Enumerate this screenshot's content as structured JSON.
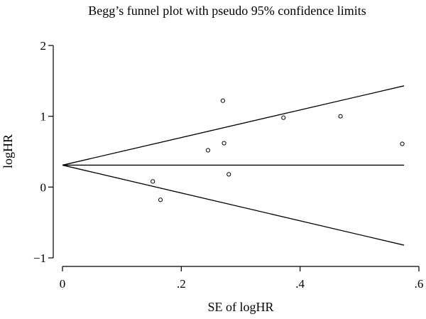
{
  "chart_data": {
    "type": "scatter",
    "title": "Begg’s funnel plot with pseudo 95% confidence limits",
    "xlabel": "SE of logHR",
    "ylabel": "logHR",
    "xlim": [
      0,
      0.6
    ],
    "ylim": [
      -1,
      2
    ],
    "x_ticks": [
      0,
      0.2,
      0.4,
      0.6
    ],
    "x_tick_labels": [
      "0",
      ".2",
      ".4",
      ".6"
    ],
    "y_ticks": [
      -1,
      0,
      1,
      2
    ],
    "y_tick_labels": [
      "−1",
      "0",
      "1",
      "2"
    ],
    "grid": false,
    "pooled_estimate": 0.31,
    "funnel_limits": {
      "se_max": 0.575,
      "upper_at_se_max": 1.43,
      "lower_at_se_max": -0.82
    },
    "points": [
      {
        "x": 0.152,
        "y": 0.08
      },
      {
        "x": 0.165,
        "y": -0.18
      },
      {
        "x": 0.245,
        "y": 0.52
      },
      {
        "x": 0.27,
        "y": 1.22
      },
      {
        "x": 0.272,
        "y": 0.62
      },
      {
        "x": 0.28,
        "y": 0.18
      },
      {
        "x": 0.372,
        "y": 0.98
      },
      {
        "x": 0.468,
        "y": 1.0
      },
      {
        "x": 0.572,
        "y": 0.61
      }
    ],
    "colors": {
      "line": "#000000",
      "marker_stroke": "#000000",
      "marker_fill": "#ffffff"
    }
  }
}
